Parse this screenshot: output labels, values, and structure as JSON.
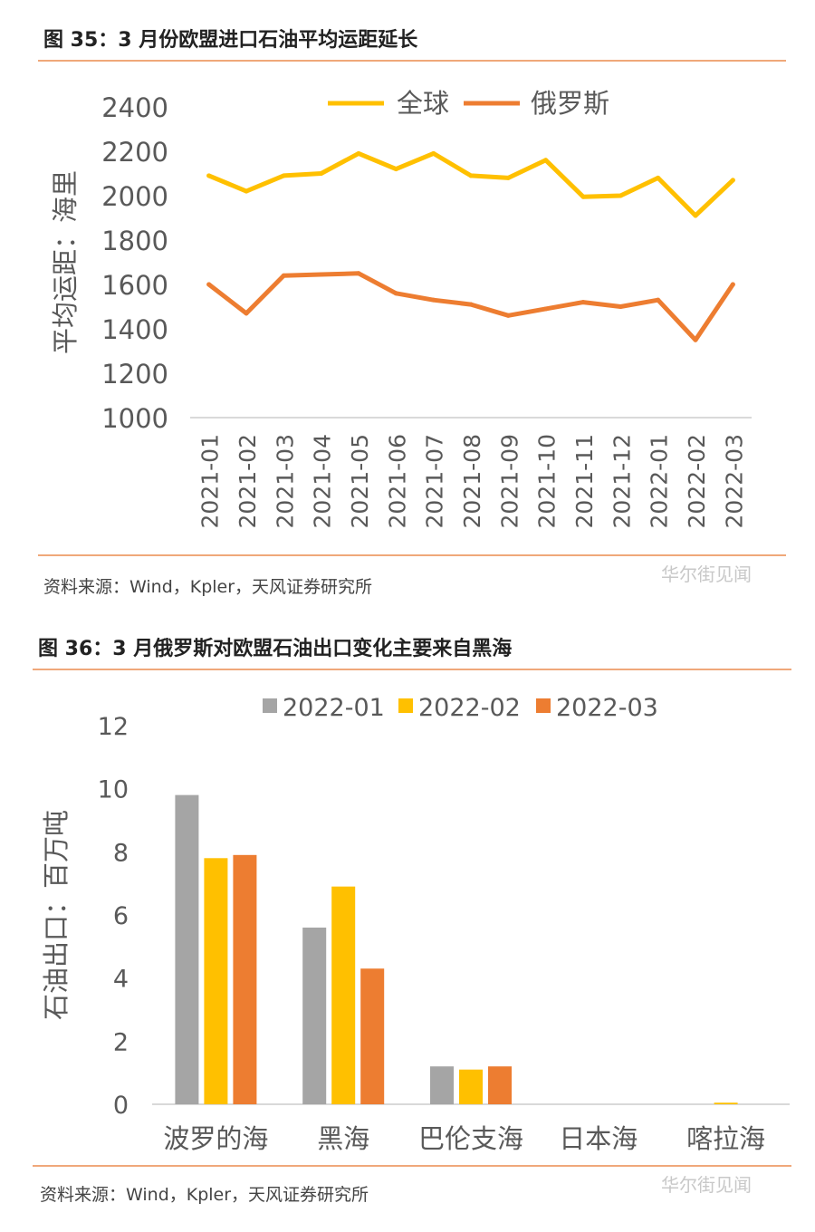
{
  "figure1": {
    "title": "图 35：3 月份欧盟进口石油平均运距延长",
    "source": "资料来源：Wind，Kpler，天风证券研究所",
    "watermark": "华尔街见闻"
  },
  "figure2": {
    "title": "图 36：3 月俄罗斯对欧盟石油出口变化主要来自黑海",
    "source": "资料来源：Wind，Kpler，天风证券研究所",
    "watermark": "华尔街见闻"
  },
  "chart_data": [
    {
      "type": "line",
      "ylabel": "平均运距：海里",
      "xlabel": "",
      "ylim": [
        1000,
        2400
      ],
      "yticks": [
        1000,
        1200,
        1400,
        1600,
        1800,
        2000,
        2200,
        2400
      ],
      "categories": [
        "2021-01",
        "2021-02",
        "2021-03",
        "2021-04",
        "2021-05",
        "2021-06",
        "2021-07",
        "2021-08",
        "2021-09",
        "2021-10",
        "2021-11",
        "2021-12",
        "2022-01",
        "2022-02",
        "2022-03"
      ],
      "series": [
        {
          "name": "全球",
          "color": "#ffc000",
          "values": [
            2090,
            2020,
            2090,
            2100,
            2190,
            2120,
            2190,
            2090,
            2080,
            2160,
            1995,
            2000,
            2080,
            1910,
            2070
          ]
        },
        {
          "name": "俄罗斯",
          "color": "#ed7d31",
          "values": [
            1600,
            1470,
            1640,
            1645,
            1650,
            1560,
            1530,
            1510,
            1460,
            1490,
            1520,
            1500,
            1530,
            1350,
            1600
          ]
        }
      ],
      "legend": "top",
      "grid": false
    },
    {
      "type": "bar",
      "ylabel": "石油出口：百万吨",
      "xlabel": "",
      "ylim": [
        0,
        12
      ],
      "yticks": [
        0,
        2,
        4,
        6,
        8,
        10,
        12
      ],
      "categories": [
        "波罗的海",
        "黑海",
        "巴伦支海",
        "日本海",
        "喀拉海"
      ],
      "series": [
        {
          "name": "2022-01",
          "color": "#a5a5a5",
          "values": [
            9.8,
            5.6,
            1.2,
            0,
            0
          ]
        },
        {
          "name": "2022-02",
          "color": "#ffc000",
          "values": [
            7.8,
            6.9,
            1.1,
            0,
            0.05
          ]
        },
        {
          "name": "2022-03",
          "color": "#ed7d31",
          "values": [
            7.9,
            4.3,
            1.2,
            0,
            0
          ]
        }
      ],
      "legend": "top",
      "grid": false
    }
  ]
}
